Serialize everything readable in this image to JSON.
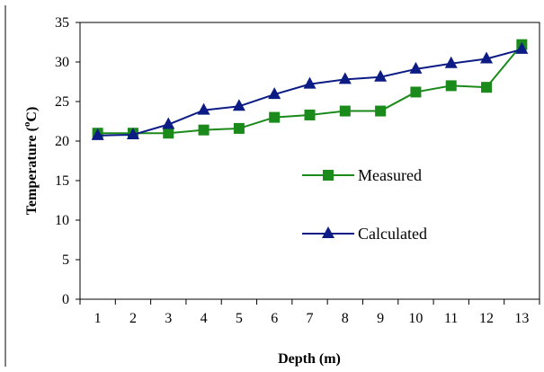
{
  "chart_data": {
    "type": "line",
    "title": "",
    "xlabel": "Depth (m)",
    "ylabel_main": "Temperature (",
    "ylabel_sup": "o",
    "ylabel_tail": "C)",
    "categories": [
      "1",
      "2",
      "3",
      "4",
      "5",
      "6",
      "7",
      "8",
      "9",
      "10",
      "11",
      "12",
      "13"
    ],
    "ylim": [
      0,
      35
    ],
    "yticks": [
      0,
      5,
      10,
      15,
      20,
      25,
      30,
      35
    ],
    "grid": false,
    "legend_position": "center-right",
    "series": [
      {
        "name": "Measured",
        "color": "#1a8a1a",
        "marker": "square",
        "values": [
          21.0,
          21.0,
          21.0,
          21.4,
          21.6,
          23.0,
          23.3,
          23.8,
          23.8,
          26.2,
          27.0,
          26.8,
          32.2
        ]
      },
      {
        "name": "Calculated",
        "color": "#0c1c84",
        "marker": "triangle",
        "values": [
          20.7,
          20.8,
          22.1,
          23.9,
          24.4,
          25.9,
          27.2,
          27.8,
          28.1,
          29.1,
          29.8,
          30.4,
          31.6
        ]
      }
    ]
  }
}
